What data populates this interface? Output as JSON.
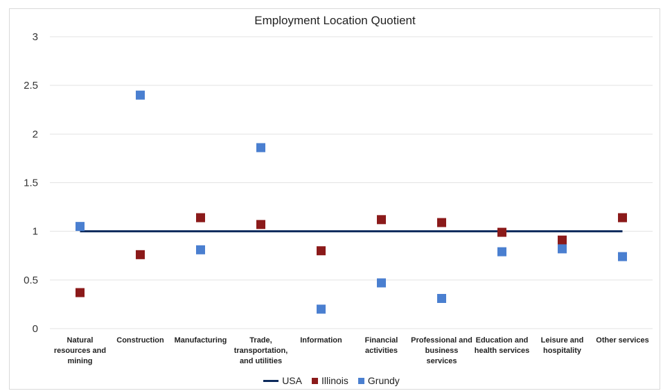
{
  "chart_data": {
    "type": "scatter",
    "title": "Employment Location Quotient",
    "categories": [
      "Natural resources and mining",
      "Construction",
      "Manufacturing",
      "Trade, transportation, and utilities",
      "Information",
      "Financial activities",
      "Professional and business services",
      "Education and health services",
      "Leisure and hospitality",
      "Other services"
    ],
    "category_lines": [
      [
        "Natural",
        "resources and",
        "mining"
      ],
      [
        "Construction"
      ],
      [
        "Manufacturing"
      ],
      [
        "Trade,",
        "transportation,",
        "and utilities"
      ],
      [
        "Information"
      ],
      [
        "Financial",
        "activities"
      ],
      [
        "Professional and",
        "business",
        "services"
      ],
      [
        "Education and",
        "health services"
      ],
      [
        "Leisure and",
        "hospitality"
      ],
      [
        "Other services"
      ]
    ],
    "ylim": [
      0,
      3
    ],
    "yticks": [
      "0",
      "0.5",
      "1",
      "1.5",
      "2",
      "2.5",
      "3"
    ],
    "grid": true,
    "legend_position": "bottom",
    "series": [
      {
        "name": "USA",
        "kind": "line",
        "color": "#0d2a5c",
        "values": [
          1,
          1,
          1,
          1,
          1,
          1,
          1,
          1,
          1,
          1
        ]
      },
      {
        "name": "Illinois",
        "kind": "marker",
        "color": "#8b1a1a",
        "values": [
          0.37,
          0.76,
          1.14,
          1.07,
          0.8,
          1.12,
          1.09,
          0.99,
          0.91,
          1.14
        ]
      },
      {
        "name": "Grundy",
        "kind": "marker",
        "color": "#4a7fd0",
        "values": [
          1.05,
          2.4,
          0.81,
          1.86,
          0.2,
          0.47,
          0.31,
          0.79,
          0.82,
          0.74
        ]
      }
    ]
  }
}
